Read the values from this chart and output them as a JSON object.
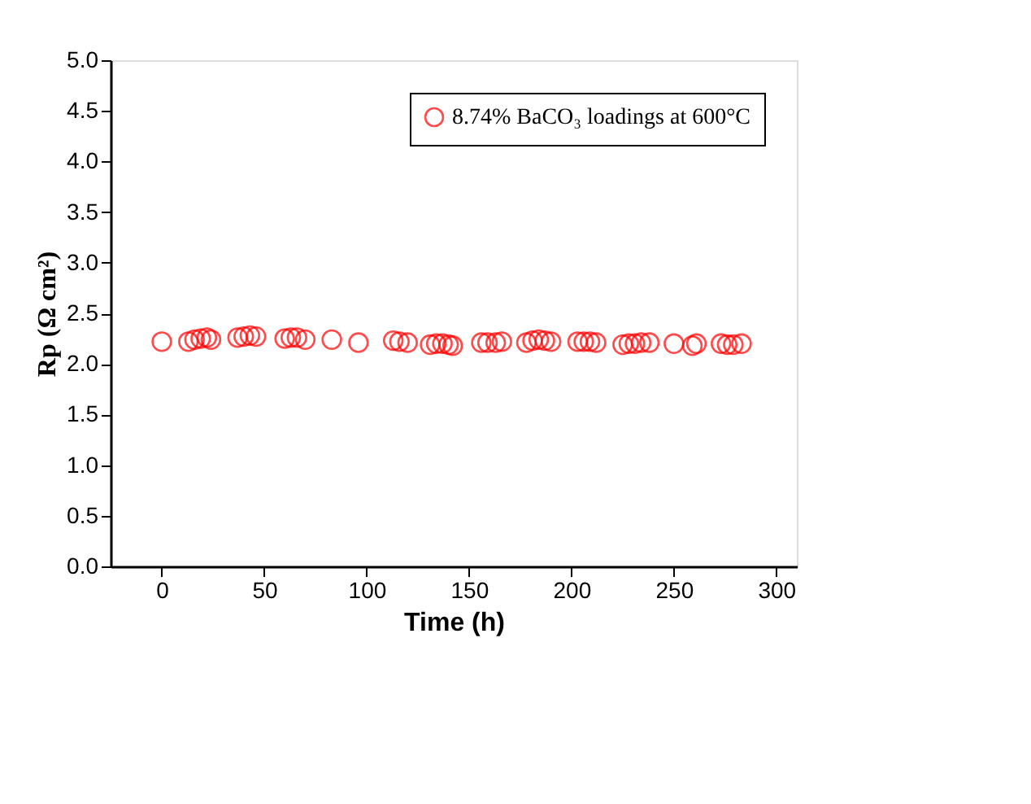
{
  "chart_data": {
    "type": "scatter",
    "xlabel": "Time (h)",
    "ylabel": "Rp (Ω cm²)",
    "xlim": [
      -25,
      310
    ],
    "ylim": [
      0,
      5
    ],
    "xticks": [
      0,
      50,
      100,
      150,
      200,
      250,
      300
    ],
    "yticks": [
      {
        "value": 0,
        "label": "0.0"
      },
      0.5,
      {
        "value": 1,
        "label": "1.0"
      },
      1.5,
      {
        "value": 2,
        "label": "2.0"
      },
      2.5,
      {
        "value": 3,
        "label": "3.0"
      },
      3.5,
      {
        "value": 4,
        "label": "4.0"
      },
      4.5,
      {
        "value": 5,
        "label": "5.0"
      }
    ],
    "legend": "top right",
    "marker": "circle",
    "grid": false,
    "series": [
      {
        "name": "8.74% BaCO₃ loadings at 600°C",
        "color": "#ff0000",
        "x": [
          0,
          13,
          16,
          19,
          22,
          24,
          37,
          40,
          43,
          46,
          60,
          63,
          66,
          70,
          83,
          96,
          113,
          116,
          120,
          131,
          134,
          137,
          140,
          142,
          156,
          159,
          163,
          166,
          178,
          181,
          184,
          187,
          190,
          203,
          206,
          209,
          212,
          225,
          228,
          231,
          234,
          238,
          250,
          259,
          261,
          273,
          276,
          279,
          283
        ],
        "values": [
          2.22,
          2.22,
          2.24,
          2.25,
          2.26,
          2.24,
          2.26,
          2.27,
          2.28,
          2.27,
          2.25,
          2.26,
          2.26,
          2.24,
          2.24,
          2.21,
          2.23,
          2.22,
          2.21,
          2.19,
          2.2,
          2.2,
          2.19,
          2.18,
          2.21,
          2.21,
          2.21,
          2.22,
          2.21,
          2.23,
          2.24,
          2.23,
          2.22,
          2.22,
          2.22,
          2.22,
          2.21,
          2.19,
          2.2,
          2.2,
          2.21,
          2.21,
          2.2,
          2.18,
          2.2,
          2.2,
          2.19,
          2.19,
          2.2
        ]
      }
    ]
  }
}
